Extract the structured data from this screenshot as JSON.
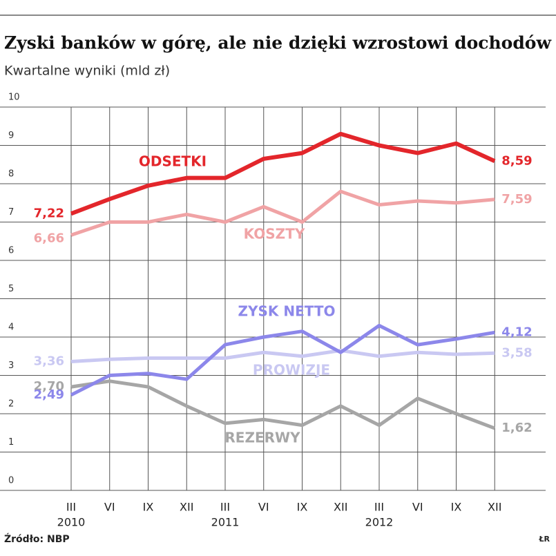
{
  "chart_data": {
    "type": "line",
    "title": "Zyski banków w górę, ale nie dzięki wzrostowi dochodów",
    "subtitle": "Kwartalne wyniki (mld zł)",
    "categories": [
      "III",
      "VI",
      "IX",
      "XII",
      "III",
      "VI",
      "IX",
      "XII",
      "III",
      "VI",
      "IX",
      "XII"
    ],
    "year_labels": [
      "2010",
      "2011",
      "2012"
    ],
    "ylim": [
      0,
      10
    ],
    "yticks": [
      0,
      1,
      2,
      3,
      4,
      5,
      6,
      7,
      8,
      9,
      10
    ],
    "grid": true,
    "series": [
      {
        "name": "ODSETKI",
        "color": "#e3262b",
        "values": [
          7.22,
          7.6,
          7.95,
          8.15,
          8.15,
          8.65,
          8.8,
          9.3,
          9.0,
          8.8,
          9.05,
          8.59
        ],
        "value_labels": [
          "7,22",
          null,
          null,
          null,
          null,
          null,
          null,
          null,
          null,
          null,
          null,
          "8,59"
        ]
      },
      {
        "name": "KOSZTY",
        "color": "#f0a3a5",
        "values": [
          6.66,
          7.0,
          7.0,
          7.2,
          7.0,
          7.4,
          7.0,
          7.8,
          7.45,
          7.55,
          7.5,
          7.59
        ],
        "value_labels": [
          "6,66",
          null,
          null,
          null,
          null,
          null,
          null,
          null,
          null,
          null,
          null,
          "7,59"
        ]
      },
      {
        "name": "ZYSK NETTO",
        "color": "#8c87ea",
        "values": [
          2.49,
          3.0,
          3.05,
          2.9,
          3.8,
          4.0,
          4.15,
          3.6,
          4.3,
          3.8,
          3.95,
          4.12
        ],
        "value_labels": [
          "2,49",
          null,
          null,
          null,
          null,
          null,
          null,
          null,
          null,
          null,
          null,
          "4,12"
        ]
      },
      {
        "name": "PROWIZJE",
        "color": "#c9c8f2",
        "values": [
          3.36,
          3.42,
          3.45,
          3.45,
          3.45,
          3.6,
          3.5,
          3.65,
          3.5,
          3.6,
          3.55,
          3.58
        ],
        "value_labels": [
          "3,36",
          null,
          null,
          null,
          null,
          null,
          null,
          null,
          null,
          null,
          null,
          "3,58"
        ]
      },
      {
        "name": "REZERWY",
        "color": "#a6a6a6",
        "values": [
          2.7,
          2.85,
          2.7,
          2.2,
          1.75,
          1.85,
          1.7,
          2.2,
          1.7,
          2.4,
          2.0,
          1.62
        ],
        "value_labels": [
          "2,70",
          null,
          null,
          null,
          null,
          null,
          null,
          null,
          null,
          null,
          null,
          "1,62"
        ]
      }
    ],
    "source": "Źródło: NBP",
    "author": "ŁR"
  }
}
